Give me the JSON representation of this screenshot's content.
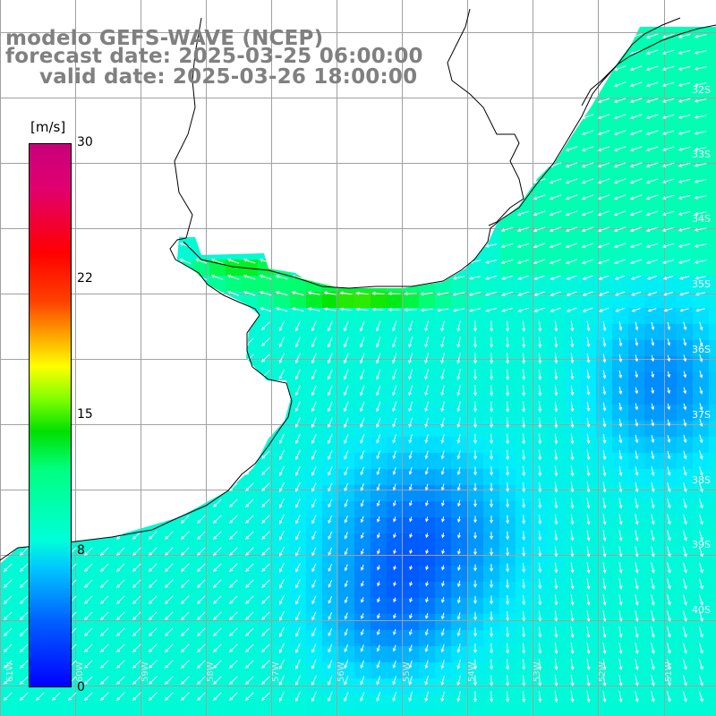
{
  "titles": {
    "model": "modelo GEFS-WAVE (NCEP)",
    "forecast": "forecast date: 2025-03-25 06:00:00",
    "valid": "valid date: 2025-03-26 18:00:00"
  },
  "colorbar": {
    "unit": "[m/s]",
    "ticks": [
      {
        "label": "30",
        "value": 30
      },
      {
        "label": "22",
        "value": 22
      },
      {
        "label": "15",
        "value": 15
      },
      {
        "label": "8",
        "value": 8
      },
      {
        "label": "0",
        "value": 0
      }
    ],
    "min": 0,
    "max": 30
  },
  "map": {
    "lat_labels": [
      "32S",
      "33S",
      "34S",
      "35S",
      "36S",
      "37S",
      "38S",
      "39S",
      "40S"
    ],
    "lon_labels": [
      "61W",
      "60W",
      "59W",
      "58W",
      "57W",
      "56W",
      "55W",
      "54W",
      "53W",
      "52W",
      "51W"
    ],
    "land_color": "#ffffff",
    "grid_color": "#a0a0a0",
    "arrow_color": "#ffffff"
  }
}
